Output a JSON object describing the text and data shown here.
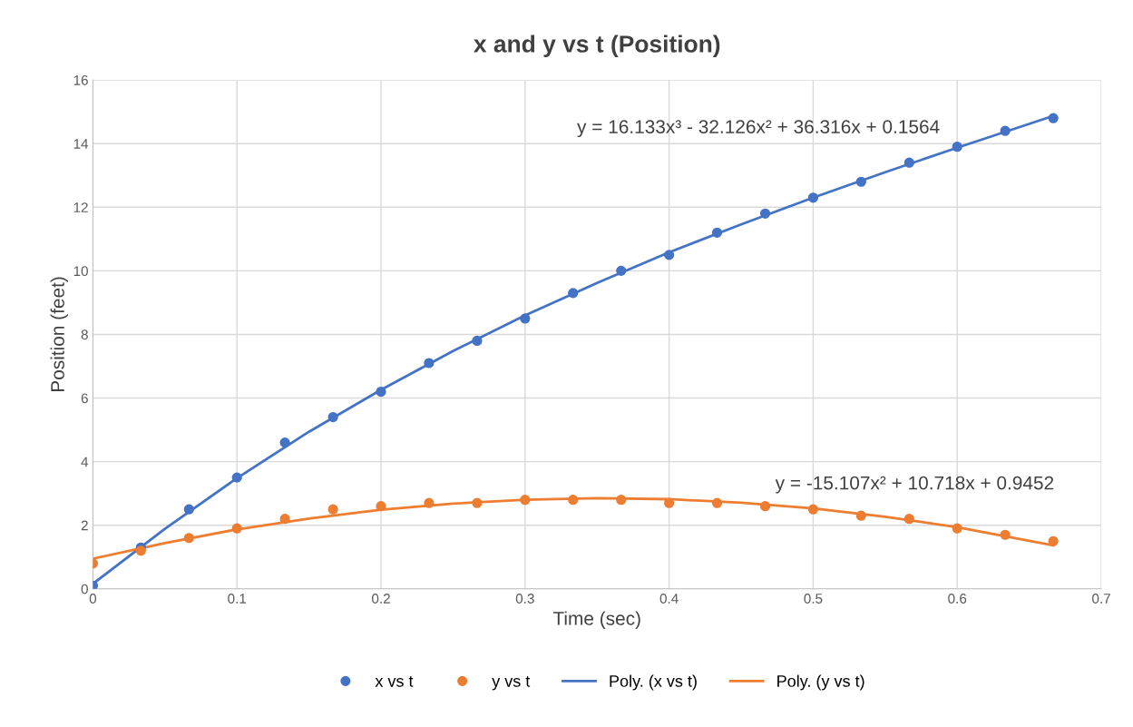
{
  "chart_data": {
    "type": "scatter",
    "title": "x and y vs t (Position)",
    "xlabel": "Time (sec)",
    "ylabel": "Position (feet)",
    "xlim": [
      0,
      0.7
    ],
    "xticks": [
      0,
      0.1,
      0.2,
      0.3,
      0.4,
      0.5,
      0.6,
      0.7
    ],
    "ylim": [
      0,
      16
    ],
    "yticks": [
      0,
      2,
      4,
      6,
      8,
      10,
      12,
      14,
      16
    ],
    "grid": true,
    "legend": "bottom",
    "x": [
      0,
      0.0333,
      0.0667,
      0.1,
      0.1333,
      0.1667,
      0.2,
      0.2333,
      0.2667,
      0.3,
      0.3333,
      0.3667,
      0.4,
      0.4333,
      0.4667,
      0.5,
      0.5333,
      0.5667,
      0.6,
      0.6333,
      0.6667
    ],
    "series": [
      {
        "name": "x vs t",
        "marker": "circle",
        "color": "#4472c4",
        "values": [
          0.1,
          1.3,
          2.5,
          3.5,
          4.6,
          5.4,
          6.2,
          7.1,
          7.8,
          8.5,
          9.3,
          10.0,
          10.5,
          11.2,
          11.8,
          12.3,
          12.8,
          13.4,
          13.9,
          14.4,
          14.8
        ]
      },
      {
        "name": "y vs t",
        "marker": "circle",
        "color": "#ed7d31",
        "values": [
          0.8,
          1.2,
          1.6,
          1.9,
          2.2,
          2.5,
          2.6,
          2.7,
          2.7,
          2.8,
          2.8,
          2.8,
          2.7,
          2.7,
          2.6,
          2.5,
          2.3,
          2.2,
          1.9,
          1.7,
          1.5
        ]
      },
      {
        "name": "Poly. (x vs t)",
        "type": "line",
        "color": "#4472c4",
        "x": [
          0,
          0.05,
          0.1,
          0.15,
          0.2,
          0.25,
          0.3,
          0.35,
          0.4,
          0.45,
          0.5,
          0.55,
          0.6,
          0.6667
        ],
        "values": [
          0.16,
          1.89,
          3.48,
          4.94,
          6.26,
          7.48,
          8.6,
          9.62,
          10.58,
          11.46,
          12.3,
          13.1,
          13.87,
          14.87
        ]
      },
      {
        "name": "Poly. (y vs t)",
        "type": "line",
        "color": "#ed7d31",
        "x": [
          0,
          0.05,
          0.1,
          0.15,
          0.2,
          0.25,
          0.3,
          0.35,
          0.4,
          0.45,
          0.5,
          0.55,
          0.6,
          0.6667
        ],
        "values": [
          0.95,
          1.44,
          1.87,
          2.21,
          2.49,
          2.68,
          2.8,
          2.85,
          2.82,
          2.71,
          2.53,
          2.27,
          1.94,
          1.37
        ]
      }
    ],
    "annotations": [
      "y = 16.133x³ - 32.126x² + 36.316x + 0.1564",
      "y = -15.107x² + 10.718x + 0.9452"
    ]
  }
}
